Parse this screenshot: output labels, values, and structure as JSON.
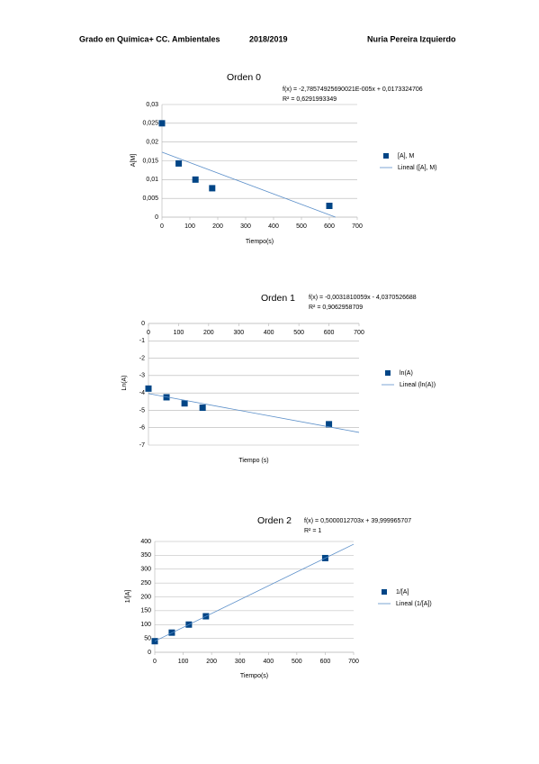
{
  "header": {
    "left": "Grado en Química+ CC. Ambientales",
    "middle": "2018/2019",
    "right": "Nuria Pereira Izquierdo"
  },
  "chart_data": [
    {
      "type": "scatter",
      "title": "Orden 0",
      "equation": "f(x) = -2,78574925690021E-005x + 0,0173324706",
      "r2": "R² = 0,6291993349",
      "x_label": "Tiempo(s)",
      "y_label": "A[M]",
      "xlim": [
        0,
        700
      ],
      "xticks": [
        0,
        100,
        200,
        300,
        400,
        500,
        600,
        700
      ],
      "ylim": [
        0,
        0.03
      ],
      "yticks": [
        0,
        {
          "value": 0.005,
          "label": "0,005"
        },
        {
          "value": 0.01,
          "label": "0,01"
        },
        {
          "value": 0.015,
          "label": "0,015"
        },
        {
          "value": 0.02,
          "label": "0,02"
        },
        {
          "value": 0.025,
          "label": "0,025"
        },
        {
          "value": 0.03,
          "label": "0,03"
        }
      ],
      "grid": true,
      "series": [
        {
          "name": "[A], M",
          "style": "marker",
          "color": "#004586",
          "x": [
            0,
            60,
            120,
            180,
            600
          ],
          "values": [
            0.025,
            0.0143,
            0.01,
            0.0077,
            0.003
          ]
        },
        {
          "name": "Lineal ([A], M)",
          "style": "line",
          "color": "#5b8fc9",
          "x": [
            0,
            622
          ],
          "values": [
            0.0173,
            0
          ]
        }
      ]
    },
    {
      "type": "scatter",
      "title": "Orden 1",
      "equation": "f(x) = -0,0031810059x - 4,0370526688",
      "r2": "R² = 0,9062958709",
      "x_label": "Tiempo (s)",
      "y_label": "Ln(A)",
      "xlim": [
        0,
        700
      ],
      "xticks": [
        0,
        100,
        200,
        300,
        400,
        500,
        600,
        700
      ],
      "ylim": [
        -7,
        0
      ],
      "yticks": [
        -7,
        -6,
        -5,
        -4,
        -3,
        -2,
        -1,
        0
      ],
      "grid": true,
      "series": [
        {
          "name": "ln(A)",
          "style": "marker",
          "color": "#004586",
          "x": [
            0,
            60,
            120,
            180,
            600
          ],
          "values": [
            -3.75,
            -4.25,
            -4.6,
            -4.85,
            -5.8
          ]
        },
        {
          "name": "Lineal (ln(A))",
          "style": "line",
          "color": "#5b8fc9",
          "x": [
            0,
            700
          ],
          "values": [
            -4.04,
            -6.27
          ]
        }
      ]
    },
    {
      "type": "scatter",
      "title": "Orden 2",
      "equation": "f(x) = 0,5000012703x + 39,999965707",
      "r2": "R² = 1",
      "x_label": "Tiempo(s)",
      "y_label": "1/[A]",
      "xlim": [
        0,
        700
      ],
      "xticks": [
        0,
        100,
        200,
        300,
        400,
        500,
        600,
        700
      ],
      "ylim": [
        0,
        400
      ],
      "yticks": [
        0,
        50,
        100,
        150,
        200,
        250,
        300,
        350,
        400
      ],
      "grid": true,
      "series": [
        {
          "name": "1/[A]",
          "style": "marker",
          "color": "#004586",
          "x": [
            0,
            60,
            120,
            180,
            600
          ],
          "values": [
            40,
            71,
            100,
            130,
            340
          ]
        },
        {
          "name": "Lineal (1/[A])",
          "style": "line",
          "color": "#5b8fc9",
          "x": [
            0,
            700
          ],
          "values": [
            40,
            390
          ]
        }
      ]
    }
  ]
}
